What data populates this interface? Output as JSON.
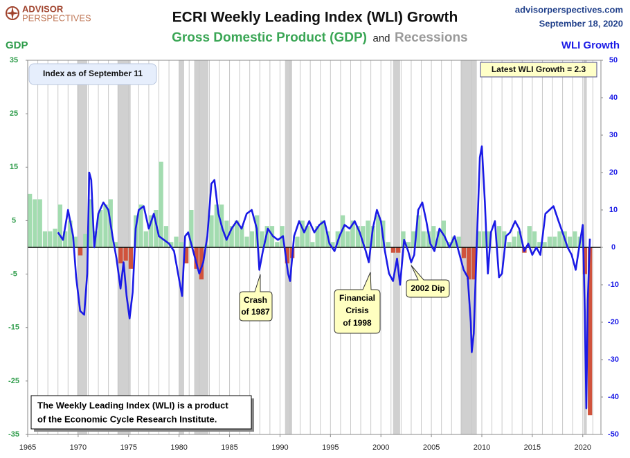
{
  "header": {
    "logo_top": "ADVISOR",
    "logo_bottom": "PERSPECTIVES",
    "site": "advisorperspectives.com",
    "date": "September 18, 2020"
  },
  "chart_data": {
    "type": "bar_line",
    "title": "ECRI Weekly Leading Index (WLI) Growth",
    "subtitle_joiner": "and",
    "ylabel": "GDP",
    "y2label": "WLI Growth",
    "xlim": [
      1965,
      2021.8
    ],
    "xticks": [
      1965,
      1970,
      1975,
      1980,
      1985,
      1990,
      1995,
      2000,
      2005,
      2010,
      2015,
      2020
    ],
    "xgrid": [
      1965,
      1966,
      1967,
      1968,
      1969,
      1970,
      1971,
      1972,
      1973,
      1974,
      1975,
      1976,
      1977,
      1978,
      1979,
      1980,
      1981,
      1982,
      1983,
      1984,
      1985,
      1986,
      1987,
      1988,
      1989,
      1990,
      1991,
      1992,
      1993,
      1994,
      1995,
      1996,
      1997,
      1998,
      1999,
      2000,
      2001,
      2002,
      2003,
      2004,
      2005,
      2006,
      2007,
      2008,
      2009,
      2010,
      2011,
      2012,
      2013,
      2014,
      2015,
      2016,
      2017,
      2018,
      2019,
      2020,
      2021
    ],
    "ylim": [
      -35,
      35
    ],
    "yticks": [
      35,
      25,
      15,
      5,
      -5,
      -15,
      -25,
      -35
    ],
    "y2lim": [
      -50,
      50
    ],
    "y2ticks": [
      50,
      40,
      30,
      20,
      10,
      0,
      -10,
      -20,
      -30,
      -40,
      -50
    ],
    "recessions": {
      "name": "Recessions",
      "color": "#d0d0d0",
      "periods": [
        [
          1969.9,
          1970.9
        ],
        [
          1973.9,
          1975.2
        ],
        [
          1980.0,
          1980.5
        ],
        [
          1981.5,
          1982.9
        ],
        [
          1990.5,
          1991.2
        ],
        [
          2001.2,
          2001.9
        ],
        [
          2007.9,
          2009.5
        ],
        [
          2020.1,
          2020.4
        ]
      ]
    },
    "series": [
      {
        "name": "Gross Domestic Product (GDP)",
        "type": "bar",
        "color": "#a3dcb0",
        "negative_color": "#d0533c",
        "x": [
          1965,
          1965.5,
          1966,
          1966.5,
          1967,
          1967.5,
          1968,
          1968.5,
          1969,
          1969.5,
          1970,
          1970.5,
          1971,
          1971.5,
          1972,
          1972.5,
          1973,
          1973.5,
          1974,
          1974.5,
          1975,
          1975.5,
          1976,
          1976.5,
          1977,
          1977.5,
          1978,
          1978.5,
          1979,
          1979.5,
          1980,
          1980.5,
          1981,
          1981.5,
          1982,
          1982.5,
          1983,
          1983.5,
          1984,
          1984.5,
          1985,
          1985.5,
          1986,
          1986.5,
          1987,
          1987.5,
          1988,
          1988.5,
          1989,
          1989.5,
          1990,
          1990.5,
          1991,
          1991.5,
          1992,
          1992.5,
          1993,
          1993.5,
          1994,
          1994.5,
          1995,
          1995.5,
          1996,
          1996.5,
          1997,
          1997.5,
          1998,
          1998.5,
          1999,
          1999.5,
          2000,
          2000.5,
          2001,
          2001.5,
          2002,
          2002.5,
          2003,
          2003.5,
          2004,
          2004.5,
          2005,
          2005.5,
          2006,
          2006.5,
          2007,
          2007.5,
          2008,
          2008.5,
          2009,
          2009.5,
          2010,
          2010.5,
          2011,
          2011.5,
          2012,
          2012.5,
          2013,
          2013.5,
          2014,
          2014.5,
          2015,
          2015.5,
          2016,
          2016.5,
          2017,
          2017.5,
          2018,
          2018.5,
          2019,
          2019.5,
          2020,
          2020.5
        ],
        "values": [
          10,
          9,
          9,
          3,
          3,
          3.5,
          8,
          3,
          5,
          2,
          -1.5,
          2.5,
          9,
          3,
          7,
          8,
          9,
          1,
          -3,
          -2.5,
          -4,
          6,
          8,
          3,
          6,
          7,
          16,
          4,
          1,
          2,
          1,
          -3,
          7,
          -4,
          -6,
          0.5,
          6,
          8,
          8,
          5,
          4,
          5,
          4,
          2,
          3,
          6,
          3,
          4,
          4,
          1,
          4,
          -3,
          -2,
          2,
          5,
          4,
          1,
          4,
          5,
          3,
          1,
          3,
          6,
          3,
          5,
          4,
          4,
          5,
          4,
          6,
          5,
          1,
          -1,
          -1,
          3,
          1,
          3,
          6,
          3,
          3,
          4,
          3,
          5,
          1,
          2,
          2,
          -2,
          -6,
          -6,
          3,
          3,
          3,
          0,
          4,
          3,
          1,
          2,
          3,
          -1,
          4,
          3,
          1,
          1,
          2,
          2,
          3,
          3,
          2,
          3,
          2,
          -5,
          -31.4
        ]
      },
      {
        "type": "line",
        "axis": "y2",
        "color": "#1a1ae6",
        "x": [
          1968.0,
          1968.5,
          1969.0,
          1969.5,
          1969.8,
          1970.2,
          1970.6,
          1970.9,
          1971.1,
          1971.3,
          1971.6,
          1972.0,
          1972.5,
          1973.0,
          1973.4,
          1973.8,
          1974.2,
          1974.5,
          1974.8,
          1975.1,
          1975.4,
          1975.7,
          1976.0,
          1976.5,
          1977.0,
          1977.5,
          1978.0,
          1978.5,
          1979.0,
          1979.5,
          1979.9,
          1980.3,
          1980.6,
          1980.9,
          1981.3,
          1981.7,
          1982.0,
          1982.4,
          1982.8,
          1983.2,
          1983.5,
          1983.9,
          1984.3,
          1984.7,
          1985.2,
          1985.7,
          1986.2,
          1986.7,
          1987.2,
          1987.7,
          1987.95,
          1988.3,
          1988.8,
          1989.3,
          1989.8,
          1990.3,
          1990.8,
          1991.0,
          1991.4,
          1991.9,
          1992.4,
          1992.9,
          1993.4,
          1993.9,
          1994.4,
          1994.9,
          1995.4,
          1995.9,
          1996.4,
          1996.9,
          1997.4,
          1997.9,
          1998.5,
          1998.8,
          1999.2,
          1999.6,
          2000.0,
          2000.4,
          2000.8,
          2001.2,
          2001.6,
          2001.9,
          2002.3,
          2002.7,
          2003.0,
          2003.3,
          2003.7,
          2004.1,
          2004.5,
          2004.9,
          2005.3,
          2005.8,
          2006.3,
          2006.8,
          2007.3,
          2007.8,
          2008.2,
          2008.6,
          2008.9,
          2009.0,
          2009.2,
          2009.5,
          2009.8,
          2010.0,
          2010.3,
          2010.6,
          2010.9,
          2011.3,
          2011.7,
          2012.0,
          2012.4,
          2012.8,
          2013.3,
          2013.7,
          2014.2,
          2014.6,
          2015.0,
          2015.4,
          2015.8,
          2016.3,
          2016.7,
          2017.1,
          2017.6,
          2018.0,
          2018.5,
          2018.9,
          2019.3,
          2019.7,
          2020.0,
          2020.2,
          2020.35,
          2020.5,
          2020.7
        ],
        "values": [
          4,
          2,
          10,
          3,
          -8,
          -17,
          -18,
          -7,
          20,
          18,
          0,
          9,
          12,
          10,
          3,
          -3,
          -11,
          -4,
          -13,
          -19,
          -12,
          5,
          10,
          11,
          5,
          9,
          3,
          2,
          1,
          -1,
          -7,
          -13,
          3,
          4,
          0,
          -4,
          -7,
          -4,
          3,
          17,
          18,
          9,
          5,
          2,
          5,
          7,
          5,
          9,
          10,
          5,
          -6,
          -1,
          5,
          3,
          2,
          3,
          -7,
          -9,
          3,
          7,
          4,
          7,
          4,
          6,
          7,
          1,
          -1,
          3,
          6,
          5,
          7,
          4,
          -1,
          -4,
          5,
          10,
          7,
          -1,
          -7,
          -9,
          -3,
          -10,
          2,
          -1,
          -4,
          -2,
          10,
          12,
          7,
          1,
          -1,
          5,
          3,
          0,
          3,
          -2,
          -6,
          -8,
          -20,
          -28,
          -23,
          1,
          24,
          27,
          12,
          -7,
          4,
          7,
          -8,
          -7,
          3,
          4,
          7,
          5,
          -1,
          1,
          -2,
          0,
          -2,
          9,
          10,
          11,
          7,
          4,
          0,
          -2,
          -6,
          1,
          6,
          -17,
          -43,
          -14,
          2.3
        ]
      }
    ],
    "annotations": {
      "index_note": "Index as of September 11",
      "latest": "Latest WLI Growth = 2.3",
      "source": [
        "The Weekly Leading Index (WLI) is a product",
        "of the Economic Cycle Research Institute."
      ],
      "crash": [
        "Crash",
        "of 1987"
      ],
      "crisis": [
        "Financial",
        "Crisis",
        "of 1998"
      ],
      "dip": "2002 Dip"
    }
  }
}
